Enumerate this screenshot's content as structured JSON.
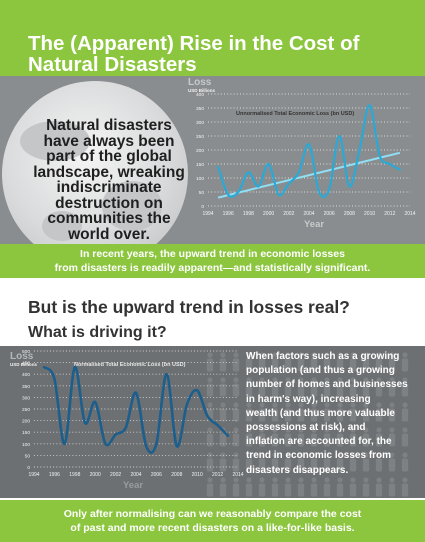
{
  "header": {
    "title_line1": "The (Apparent) Rise in the Cost of",
    "title_line2": "Natural Disasters"
  },
  "intro": {
    "line1": "Natural disasters",
    "line2": "have always been",
    "line3": "part of the global",
    "line4": "landscape, wreaking",
    "line5": "indiscriminate",
    "line6": "destruction on",
    "line7": "communities the",
    "line8": "world over."
  },
  "banner1": {
    "line1": "In recent years, the upward trend in economic losses",
    "line2": "from disasters is readily apparent—and statistically significant."
  },
  "section2": {
    "heading": "But is the upward trend in losses real?",
    "subheading": "What is driving it?",
    "body_lines": [
      "When factors such as a growing",
      "population (and thus a growing",
      "number of homes and businesses",
      "in harm's way), increasing",
      "wealth (and thus more valuable",
      "possessions at risk), and",
      "inflation are accounted for, the",
      "trend in economic losses from",
      "disasters disappears."
    ]
  },
  "banner2": {
    "line1": "Only after normalising can we reasonably compare the cost",
    "line2": "of past and more recent disasters on a like-for-like basis."
  },
  "colors": {
    "green": "#8cc63f",
    "line_blue": "#2aa9d6",
    "dark_blue": "#1c5e8c",
    "trend": "#8fdff5"
  },
  "chart_data": [
    {
      "type": "line",
      "title": "Unnormalised Total Economic Loss (bn USD)",
      "ylabel": "Loss",
      "yunit": "USD Billions",
      "xlabel": "Year",
      "ylim": [
        0,
        400
      ],
      "yticks": [
        "0",
        "50",
        "100",
        "150",
        "200",
        "250",
        "300",
        "350",
        "400"
      ],
      "xlim": [
        1994,
        2014
      ],
      "xticks": [
        "1994",
        "1996",
        "1998",
        "2000",
        "2002",
        "2004",
        "2006",
        "2008",
        "2010",
        "2012",
        "2014"
      ],
      "grid": true,
      "x": [
        1995,
        1996,
        1997,
        1998,
        1999,
        2000,
        2001,
        2002,
        2003,
        2004,
        2005,
        2006,
        2007,
        2008,
        2009,
        2010,
        2011,
        2012,
        2013
      ],
      "values": [
        140,
        40,
        50,
        120,
        70,
        150,
        40,
        80,
        120,
        220,
        50,
        60,
        250,
        70,
        200,
        360,
        180,
        150,
        130
      ],
      "trend": [
        30,
        190
      ]
    },
    {
      "type": "line",
      "title": "Normalised Total Economic Loss (bn USD)",
      "ylabel": "Loss",
      "yunit": "USD Billions",
      "xlabel": "Year",
      "ylim": [
        0,
        500
      ],
      "yticks": [
        "0",
        "50",
        "100",
        "150",
        "200",
        "250",
        "300",
        "350",
        "400",
        "450",
        "500"
      ],
      "xlim": [
        1994,
        2014
      ],
      "xticks": [
        "1994",
        "1996",
        "1998",
        "2000",
        "2002",
        "2004",
        "2006",
        "2008",
        "2010",
        "2012",
        "2014"
      ],
      "grid": true,
      "x": [
        1995,
        1996,
        1997,
        1998,
        1999,
        2000,
        2001,
        2002,
        2003,
        2004,
        2005,
        2006,
        2007,
        2008,
        2009,
        2010,
        2011,
        2012,
        2013
      ],
      "values": [
        430,
        380,
        100,
        430,
        190,
        280,
        100,
        140,
        170,
        320,
        90,
        100,
        400,
        90,
        270,
        330,
        220,
        180,
        135
      ]
    }
  ]
}
